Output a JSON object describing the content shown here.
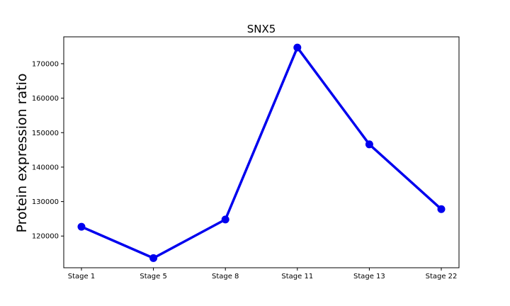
{
  "chart_data": {
    "type": "line",
    "title": "SNX5",
    "xlabel": "",
    "ylabel": "Protein expression ratio",
    "categories": [
      "Stage 1",
      "Stage 5",
      "Stage 8",
      "Stage 11",
      "Stage 13",
      "Stage 22"
    ],
    "series": [
      {
        "color": "#0000ee",
        "values": [
          122700,
          113600,
          124800,
          174700,
          146600,
          127800
        ]
      }
    ],
    "ylim": [
      110800,
      177800
    ],
    "yticks": [
      120000,
      130000,
      140000,
      150000,
      160000,
      170000
    ],
    "ytick_labels": [
      "120000",
      "130000",
      "140000",
      "150000",
      "160000",
      "170000"
    ],
    "grid": false,
    "legend": "none"
  }
}
